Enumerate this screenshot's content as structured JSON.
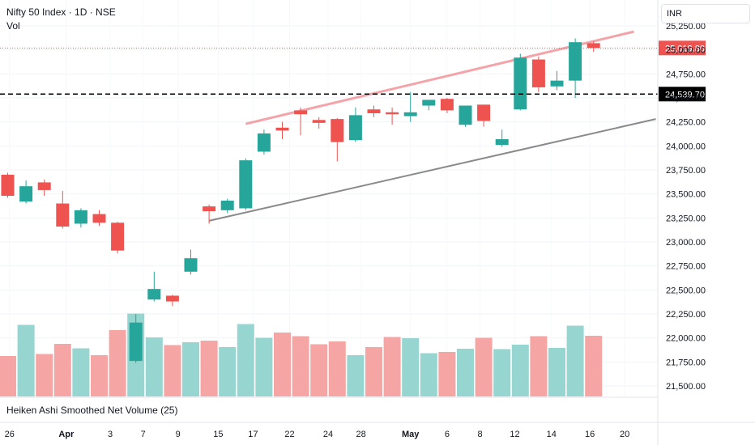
{
  "header": {
    "title": "Nifty 50 Index · 1D · NSE",
    "volume_label": "Vol",
    "currency": "INR"
  },
  "indicator": {
    "title": "Heiken Ashi Smoothed Net Volume (25)"
  },
  "colors": {
    "up": "#26a69a",
    "down": "#ef5350",
    "up_vol": "#97d6d0",
    "down_vol": "#f5a6a4",
    "trend_upper": "#f4a3a8",
    "trend_lower": "#8a8a8a"
  },
  "chart_data": {
    "type": "candlestick",
    "y_ticks": [
      "25,250.00",
      "25,000.00",
      "24,750.00",
      "24,500.00",
      "24,250.00",
      "24,000.00",
      "23,750.00",
      "23,500.00",
      "23,250.00",
      "23,000.00",
      "22,750.00",
      "22,500.00",
      "22,250.00",
      "22,000.00",
      "21,750.00",
      "21,500.00"
    ],
    "x_ticks": [
      "26",
      "Apr",
      "3",
      "7",
      "9",
      "15",
      "17",
      "22",
      "24",
      "28",
      "May",
      "6",
      "8",
      "12",
      "14",
      "16",
      "20"
    ],
    "price_labels": [
      {
        "id": "last",
        "text": "25,019.80",
        "value": 25019.8,
        "color": "#ef5350"
      },
      {
        "id": "level",
        "text": "24,539.70",
        "value": 24539.7,
        "color": "#000000"
      }
    ],
    "candles": [
      {
        "open": 23700,
        "high": 23720,
        "low": 23460,
        "close": 23480,
        "volume": 100
      },
      {
        "open": 23420,
        "high": 23640,
        "low": 23400,
        "close": 23580,
        "volume": 177
      },
      {
        "open": 23620,
        "high": 23650,
        "low": 23480,
        "close": 23540,
        "volume": 105
      },
      {
        "open": 23400,
        "high": 23530,
        "low": 23140,
        "close": 23160,
        "volume": 130
      },
      {
        "open": 23190,
        "high": 23350,
        "low": 23150,
        "close": 23330,
        "volume": 119
      },
      {
        "open": 23290,
        "high": 23330,
        "low": 23170,
        "close": 23200,
        "volume": 102
      },
      {
        "open": 23200,
        "high": 23210,
        "low": 22880,
        "close": 22910,
        "volume": 164
      },
      {
        "open": 21760,
        "high": 22250,
        "low": 21740,
        "close": 22160,
        "volume": 205
      },
      {
        "open": 22400,
        "high": 22690,
        "low": 22380,
        "close": 22510,
        "volume": 146
      },
      {
        "open": 22440,
        "high": 22450,
        "low": 22330,
        "close": 22380,
        "volume": 127
      },
      {
        "open": 22690,
        "high": 22920,
        "low": 22660,
        "close": 22830,
        "volume": 134
      },
      {
        "open": 23370,
        "high": 23390,
        "low": 23190,
        "close": 23320,
        "volume": 138
      },
      {
        "open": 23330,
        "high": 23450,
        "low": 23300,
        "close": 23430,
        "volume": 122
      },
      {
        "open": 23350,
        "high": 23870,
        "low": 23330,
        "close": 23850,
        "volume": 179
      },
      {
        "open": 23940,
        "high": 24170,
        "low": 23910,
        "close": 24130,
        "volume": 145
      },
      {
        "open": 24190,
        "high": 24250,
        "low": 24070,
        "close": 24160,
        "volume": 158
      },
      {
        "open": 24370,
        "high": 24400,
        "low": 24110,
        "close": 24330,
        "volume": 149
      },
      {
        "open": 24270,
        "high": 24300,
        "low": 24180,
        "close": 24240,
        "volume": 129
      },
      {
        "open": 24280,
        "high": 24290,
        "low": 23840,
        "close": 24040,
        "volume": 136
      },
      {
        "open": 24060,
        "high": 24400,
        "low": 24040,
        "close": 24320,
        "volume": 102
      },
      {
        "open": 24380,
        "high": 24420,
        "low": 24300,
        "close": 24340,
        "volume": 122
      },
      {
        "open": 24350,
        "high": 24400,
        "low": 24220,
        "close": 24330,
        "volume": 147
      },
      {
        "open": 24310,
        "high": 24560,
        "low": 24250,
        "close": 24350,
        "volume": 144
      },
      {
        "open": 24420,
        "high": 24480,
        "low": 24370,
        "close": 24480,
        "volume": 107
      },
      {
        "open": 24490,
        "high": 24500,
        "low": 24340,
        "close": 24370,
        "volume": 110
      },
      {
        "open": 24220,
        "high": 24420,
        "low": 24200,
        "close": 24420,
        "volume": 118
      },
      {
        "open": 24430,
        "high": 24430,
        "low": 24200,
        "close": 24260,
        "volume": 145
      },
      {
        "open": 24010,
        "high": 24170,
        "low": 23990,
        "close": 24070,
        "volume": 117
      },
      {
        "open": 24380,
        "high": 24960,
        "low": 24370,
        "close": 24920,
        "volume": 128
      },
      {
        "open": 24900,
        "high": 24930,
        "low": 24560,
        "close": 24610,
        "volume": 149
      },
      {
        "open": 24620,
        "high": 24780,
        "low": 24580,
        "close": 24680,
        "volume": 120
      },
      {
        "open": 24680,
        "high": 25120,
        "low": 24500,
        "close": 25080,
        "volume": 175
      },
      {
        "open": 25070,
        "high": 25090,
        "low": 24980,
        "close": 25020,
        "volume": 150
      }
    ]
  }
}
